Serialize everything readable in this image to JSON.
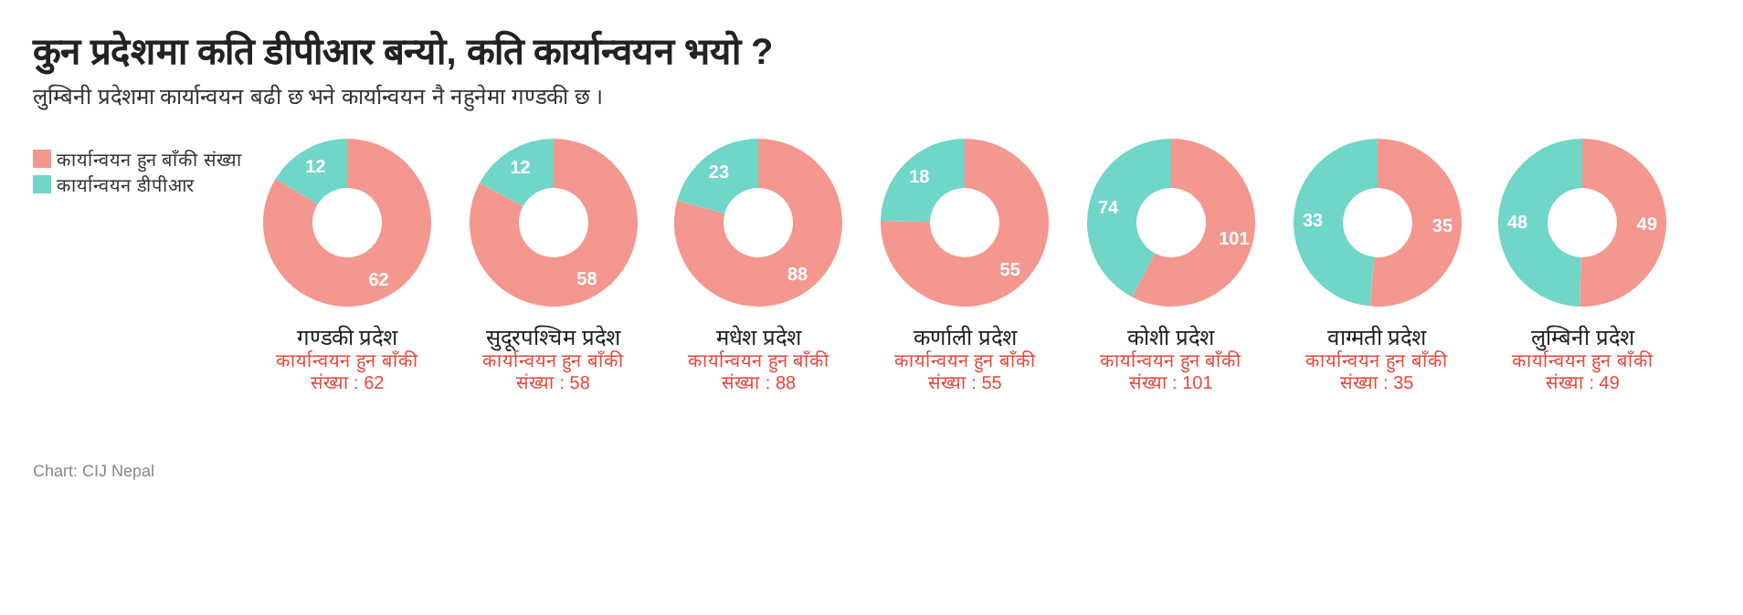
{
  "chart_data": [
    {
      "type": "other",
      "title": "कुन प्रदेशमा कति डीपीआर बन्यो, कति कार्यान्वयन भयो ?",
      "subtitle": "लुम्बिनी प्रदेशमा कार्यान्वयन बढी छ भने कार्यान्वयन नै नहुनेमा गण्डकी छ ।",
      "annotations": [
        "Chart: CIJ Nepal"
      ]
    },
    {
      "type": "donut",
      "title": "गण्डकी प्रदेश",
      "categories": [
        "कार्यान्वयन हुन बाँकी संख्या",
        "कार्यान्वयन डीपीआर"
      ],
      "values": [
        62,
        12
      ],
      "colors": [
        "#f4978e",
        "#6fd6c8"
      ],
      "data_labels": true,
      "legend": "left",
      "annotations": [
        "कार्यान्वयन हुन बाँकी संख्या : 62"
      ]
    },
    {
      "type": "donut",
      "title": "सुदूरपश्चिम प्रदेश",
      "categories": [
        null,
        null
      ],
      "values": [
        58,
        12
      ],
      "colors": [
        "#f4978e",
        "#6fd6c8"
      ],
      "data_labels": true,
      "annotations": [
        "कार्यान्वयन हुन बाँकी संख्या : 58"
      ]
    },
    {
      "type": "donut",
      "title": "मधेश प्रदेश",
      "categories": [
        null,
        null
      ],
      "values": [
        88,
        23
      ],
      "colors": [
        "#f4978e",
        "#6fd6c8"
      ],
      "data_labels": true,
      "annotations": [
        "कार्यान्वयन हुन बाँकी संख्या : 88"
      ]
    },
    {
      "type": "donut",
      "title": "कर्णाली प्रदेश",
      "categories": [
        null,
        null
      ],
      "values": [
        55,
        18
      ],
      "colors": [
        "#f4978e",
        "#6fd6c8"
      ],
      "data_labels": true,
      "annotations": [
        "कार्यान्वयन हुन बाँकी संख्या : 55"
      ]
    },
    {
      "type": "donut",
      "title": "कोशी प्रदेश",
      "categories": [
        null,
        null
      ],
      "values": [
        101,
        74
      ],
      "colors": [
        "#f4978e",
        "#6fd6c8"
      ],
      "data_labels": true,
      "annotations": [
        "कार्यान्वयन हुन बाँकी संख्या : 101"
      ]
    },
    {
      "type": "donut",
      "title": "वाग्मती प्रदेश",
      "categories": [
        null,
        null
      ],
      "values": [
        35,
        33
      ],
      "colors": [
        "#f4978e",
        "#6fd6c8"
      ],
      "data_labels": true,
      "annotations": [
        "कार्यान्वयन हुन बाँकी संख्या : 35"
      ]
    },
    {
      "type": "donut",
      "title": "लुम्बिनी प्रदेश",
      "categories": [
        null,
        null
      ],
      "values": [
        49,
        48
      ],
      "colors": [
        "#f4978e",
        "#6fd6c8"
      ],
      "data_labels": true,
      "annotations": [
        "कार्यान्वयन हुन बाँकी संख्या : 49"
      ]
    }
  ]
}
